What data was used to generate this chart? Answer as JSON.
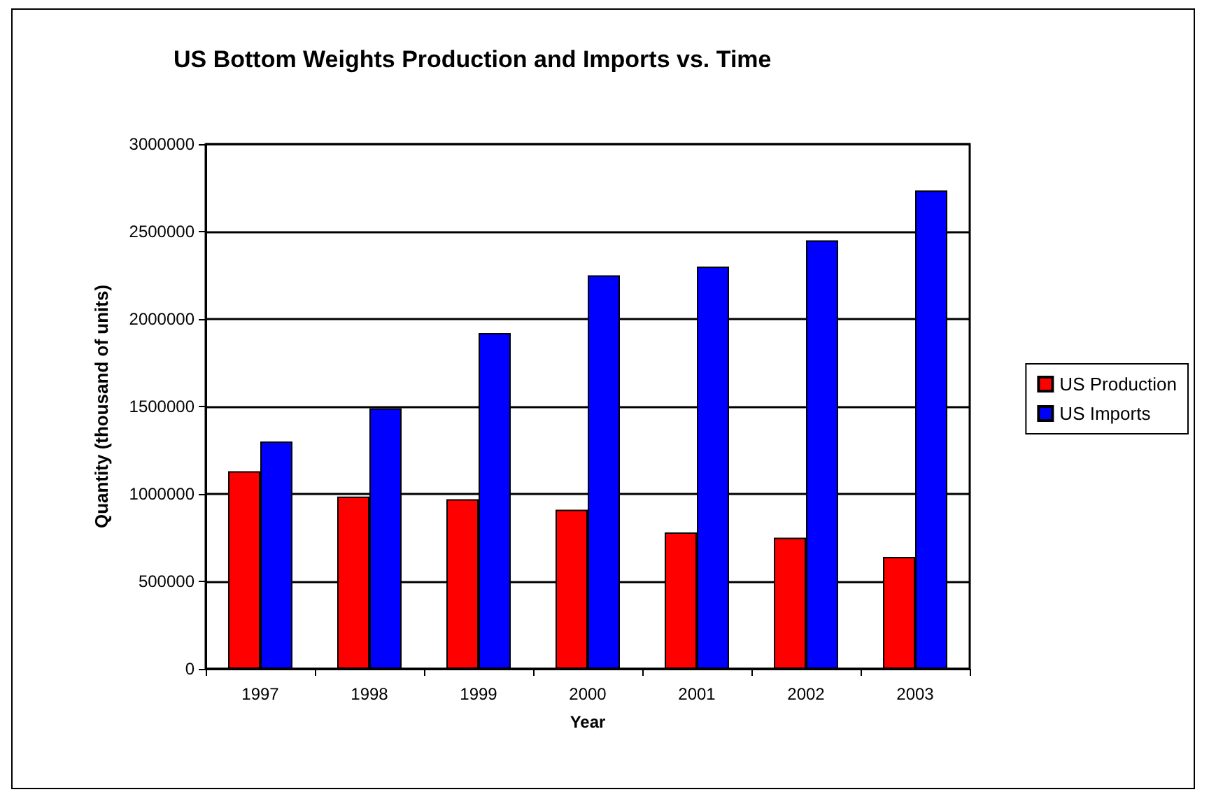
{
  "chart_data": {
    "type": "bar",
    "title": "US Bottom Weights Production and Imports vs. Time",
    "xlabel": "Year",
    "ylabel": "Quantity (thousand of units)",
    "categories": [
      "1997",
      "1998",
      "1999",
      "2000",
      "2001",
      "2002",
      "2003"
    ],
    "series": [
      {
        "name": "US Production",
        "color": "#ff0000",
        "values": [
          1130000,
          985000,
          970000,
          910000,
          780000,
          750000,
          640000
        ]
      },
      {
        "name": "US Imports",
        "color": "#0000ff",
        "values": [
          1300000,
          1490000,
          1920000,
          2250000,
          2300000,
          2450000,
          2735000
        ]
      }
    ],
    "ylim": [
      0,
      3000000
    ],
    "yticks": [
      0,
      500000,
      1000000,
      1500000,
      2000000,
      2500000,
      3000000
    ],
    "grid": "y",
    "legend": "right"
  }
}
